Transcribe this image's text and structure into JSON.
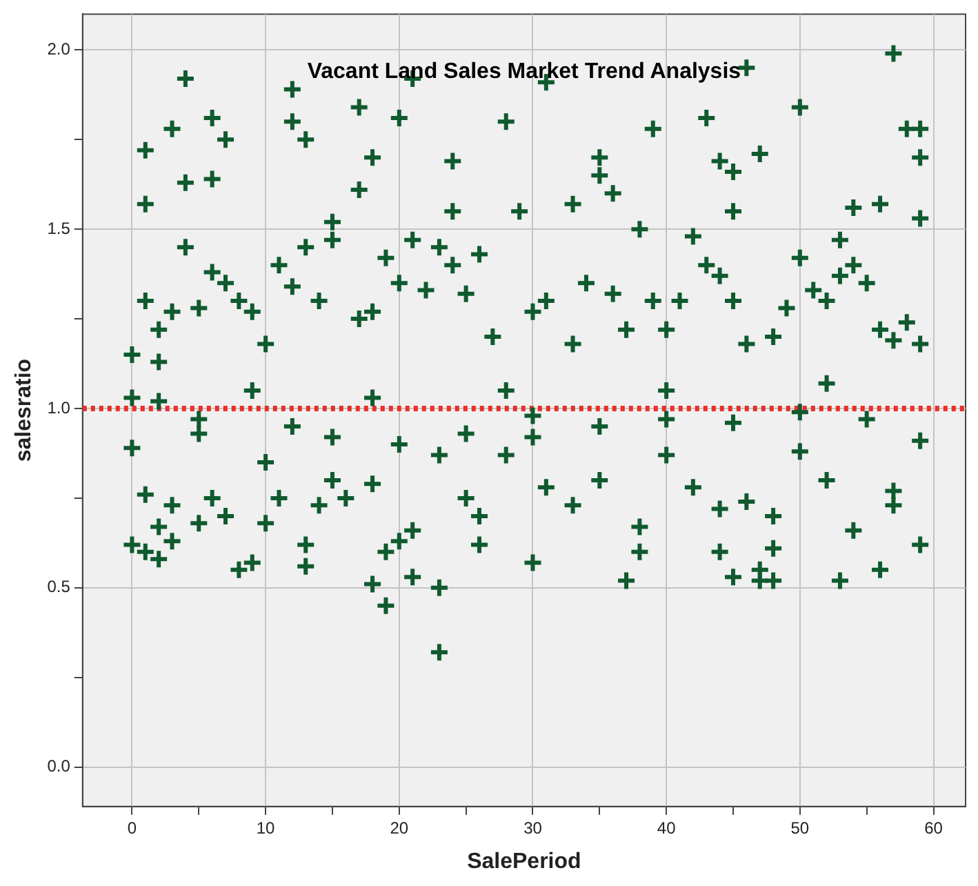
{
  "chart_data": {
    "type": "scatter",
    "title": "Vacant Land Sales Market Trend Analysis",
    "xlabel": "SalePeriod",
    "ylabel": "salesratio",
    "xlim": [
      -3.7,
      62.4
    ],
    "ylim": [
      -0.11,
      2.1
    ],
    "xticks": [
      0,
      {
        "value": 5,
        "label": null
      },
      10,
      {
        "value": 15,
        "label": null
      },
      20,
      {
        "value": 25,
        "label": null
      },
      30,
      {
        "value": 35,
        "label": null
      },
      40,
      {
        "value": 45,
        "label": null
      },
      50,
      {
        "value": 55,
        "label": null
      },
      60
    ],
    "yticks": [
      {
        "value": 0,
        "label": "0.0"
      },
      {
        "value": 0.25,
        "label": null
      },
      0.5,
      {
        "value": 0.75,
        "label": null
      },
      {
        "value": 1,
        "label": "1.0"
      },
      {
        "value": 1.25,
        "label": null
      },
      1.5,
      {
        "value": 1.75,
        "label": null
      },
      {
        "value": 2,
        "label": "2.0"
      }
    ],
    "grid": true,
    "legend": false,
    "marker": "cross",
    "ref_lines": [
      {
        "axis": "y",
        "value": 1,
        "color": "#e8302a",
        "line_style": "dotted"
      }
    ],
    "series": [
      {
        "color": "#0f5a2e",
        "x": [
          4,
          1,
          1,
          1,
          3,
          4,
          4,
          6,
          6,
          7,
          12,
          12,
          13,
          17,
          18,
          17,
          20,
          21,
          24,
          24,
          28,
          29,
          31,
          33,
          35,
          35,
          36,
          39,
          43,
          46,
          44,
          45,
          45,
          47,
          50,
          56,
          54,
          57,
          58,
          59,
          59,
          59,
          53,
          0,
          0,
          2,
          2,
          3,
          5,
          6,
          7,
          8,
          9,
          10,
          11,
          12,
          13,
          14,
          15,
          15,
          17,
          18,
          19,
          20,
          21,
          22,
          23,
          24,
          25,
          26,
          27,
          30,
          31,
          33,
          34,
          36,
          37,
          38,
          39,
          40,
          41,
          42,
          43,
          44,
          45,
          46,
          48,
          49,
          50,
          51,
          52,
          53,
          54,
          55,
          56,
          57,
          58,
          59,
          2,
          9,
          18,
          28,
          40,
          52,
          0,
          0,
          1,
          2,
          2,
          3,
          1,
          3,
          5,
          6,
          7,
          8,
          9,
          10,
          11,
          13,
          13,
          14,
          15,
          16,
          18,
          18,
          19,
          19,
          20,
          21,
          21,
          23,
          23,
          23,
          25,
          26,
          26,
          28,
          30,
          31,
          33,
          35,
          37,
          38,
          38,
          40,
          42,
          44,
          44,
          45,
          46,
          47,
          47,
          48,
          48,
          48,
          52,
          53,
          54,
          56,
          57,
          57,
          59,
          59,
          50,
          35,
          10,
          5,
          15,
          25,
          45,
          55,
          30,
          40,
          5,
          12,
          20,
          30,
          50
        ],
        "values": [
          1.92,
          1.72,
          1.57,
          1.3,
          1.78,
          1.63,
          1.45,
          1.81,
          1.64,
          1.75,
          1.89,
          1.8,
          1.75,
          1.84,
          1.7,
          1.61,
          1.81,
          1.92,
          1.69,
          1.55,
          1.8,
          1.55,
          1.91,
          1.57,
          1.7,
          1.65,
          1.6,
          1.78,
          1.81,
          1.95,
          1.69,
          1.66,
          1.55,
          1.71,
          1.84,
          1.57,
          1.56,
          1.99,
          1.78,
          1.78,
          1.7,
          1.53,
          1.47,
          1.15,
          1.03,
          1.22,
          1.13,
          1.27,
          1.28,
          1.38,
          1.35,
          1.3,
          1.27,
          1.18,
          1.4,
          1.34,
          1.45,
          1.3,
          1.52,
          1.47,
          1.25,
          1.27,
          1.42,
          1.35,
          1.47,
          1.33,
          1.45,
          1.4,
          1.32,
          1.43,
          1.2,
          1.27,
          1.3,
          1.18,
          1.35,
          1.32,
          1.22,
          1.5,
          1.3,
          1.22,
          1.3,
          1.48,
          1.4,
          1.37,
          1.3,
          1.18,
          1.2,
          1.28,
          1.42,
          1.33,
          1.3,
          1.37,
          1.4,
          1.35,
          1.22,
          1.19,
          1.24,
          1.18,
          1.02,
          1.05,
          1.03,
          1.05,
          1.05,
          1.07,
          0.89,
          0.62,
          0.6,
          0.58,
          0.67,
          0.63,
          0.76,
          0.73,
          0.68,
          0.75,
          0.7,
          0.55,
          0.57,
          0.68,
          0.75,
          0.56,
          0.62,
          0.73,
          0.8,
          0.75,
          0.79,
          0.51,
          0.45,
          0.6,
          0.63,
          0.66,
          0.53,
          0.5,
          0.32,
          0.87,
          0.75,
          0.7,
          0.62,
          0.87,
          0.57,
          0.78,
          0.73,
          0.8,
          0.52,
          0.6,
          0.67,
          0.87,
          0.78,
          0.72,
          0.6,
          0.53,
          0.74,
          0.55,
          0.52,
          0.61,
          0.7,
          0.52,
          0.8,
          0.52,
          0.66,
          0.55,
          0.73,
          0.77,
          0.62,
          0.91,
          0.88,
          0.95,
          0.85,
          0.93,
          0.92,
          0.93,
          0.96,
          0.97,
          0.92,
          0.97,
          0.97,
          0.95,
          0.9,
          0.98,
          0.99
        ]
      }
    ]
  }
}
